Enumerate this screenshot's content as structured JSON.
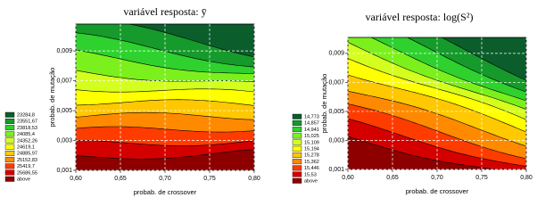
{
  "chart_data": [
    {
      "type": "contour",
      "title": "variável resposta: ȳ",
      "xlabel": "probab. de crossover",
      "ylabel": "probab. de mutação",
      "xlim": [
        0.6,
        0.8
      ],
      "ylim": [
        0.001,
        0.0108
      ],
      "xticks": [
        {
          "value": 0.6,
          "label": "0,60"
        },
        {
          "value": 0.65,
          "label": "0,65"
        },
        {
          "value": 0.7,
          "label": "0,70"
        },
        {
          "value": 0.75,
          "label": "0,75"
        },
        {
          "value": 0.8,
          "label": "0,80"
        }
      ],
      "yticks": [
        {
          "value": 0.001,
          "label": "0,001"
        },
        {
          "value": 0.003,
          "label": "0,003"
        },
        {
          "value": 0.005,
          "label": "0,005"
        },
        {
          "value": 0.007,
          "label": "0,007"
        },
        {
          "value": 0.009,
          "label": "0,009"
        }
      ],
      "grid": true,
      "levels": [
        {
          "value": 23284.8,
          "label": "23284,8"
        },
        {
          "value": 23551.67,
          "label": "23551,67"
        },
        {
          "value": 23818.53,
          "label": "23818,53"
        },
        {
          "value": 24085.4,
          "label": "24085,4"
        },
        {
          "value": 24352.26,
          "label": "24352,26"
        },
        {
          "value": 24619.1,
          "label": "24619,1"
        },
        {
          "value": 24885.97,
          "label": "24885,97"
        },
        {
          "value": 25152.83,
          "label": "25152,83"
        },
        {
          "value": 25419.7,
          "label": "25419,7"
        },
        {
          "value": 25686.55,
          "label": "25686,55"
        }
      ],
      "above_label": "above",
      "colors": [
        "#0b5e2c",
        "#169a2b",
        "#2ed12e",
        "#7cf01c",
        "#d4ff1e",
        "#ffff00",
        "#ffc800",
        "#ff8a00",
        "#ff3c00",
        "#d40000",
        "#8e0000"
      ]
    },
    {
      "type": "contour",
      "title": "variável resposta: log(S²)",
      "xlabel": "probab. de crossover",
      "ylabel": "probab. de mutação",
      "xlim": [
        0.6,
        0.8
      ],
      "ylim": [
        0.001,
        0.0101
      ],
      "xticks": [
        {
          "value": 0.6,
          "label": "0,60"
        },
        {
          "value": 0.65,
          "label": "0,65"
        },
        {
          "value": 0.7,
          "label": "0,70"
        },
        {
          "value": 0.75,
          "label": "0,75"
        },
        {
          "value": 0.8,
          "label": "0,80"
        }
      ],
      "yticks": [
        {
          "value": 0.001,
          "label": "0,001"
        },
        {
          "value": 0.003,
          "label": "0,003"
        },
        {
          "value": 0.005,
          "label": "0,005"
        },
        {
          "value": 0.007,
          "label": "0,007"
        },
        {
          "value": 0.009,
          "label": "0,009"
        }
      ],
      "grid": true,
      "levels": [
        {
          "value": 14.773,
          "label": "14,773"
        },
        {
          "value": 14.857,
          "label": "14,857"
        },
        {
          "value": 14.941,
          "label": "14,941"
        },
        {
          "value": 15.025,
          "label": "15,025"
        },
        {
          "value": 15.109,
          "label": "15,109"
        },
        {
          "value": 15.194,
          "label": "15,194"
        },
        {
          "value": 15.278,
          "label": "15,278"
        },
        {
          "value": 15.362,
          "label": "15,362"
        },
        {
          "value": 15.446,
          "label": "15,446"
        },
        {
          "value": 15.53,
          "label": "15,53"
        }
      ],
      "above_label": "above",
      "colors": [
        "#0b5e2c",
        "#169a2b",
        "#2ed12e",
        "#7cf01c",
        "#d4ff1e",
        "#ffff00",
        "#ffc800",
        "#ff8a00",
        "#ff3c00",
        "#d40000",
        "#8e0000"
      ]
    }
  ]
}
